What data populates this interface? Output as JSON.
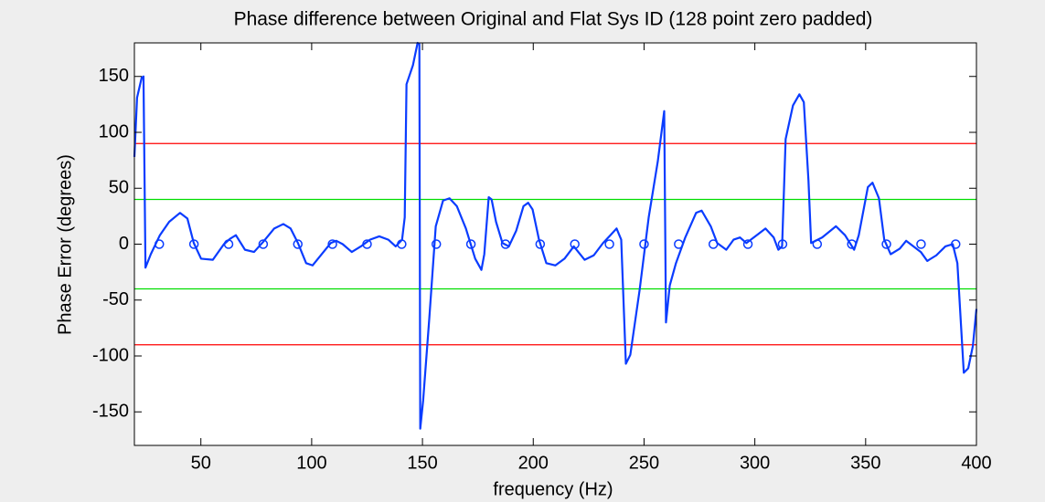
{
  "chart_data": {
    "type": "line",
    "title": "Phase difference between Original and Flat Sys ID (128 point zero padded)",
    "xlabel": "frequency (Hz)",
    "ylabel": "Phase Error (degrees)",
    "xlim": [
      20,
      400
    ],
    "ylim": [
      -180,
      180
    ],
    "xticks": [
      50,
      100,
      150,
      200,
      250,
      300,
      350,
      400
    ],
    "yticks": [
      -150,
      -100,
      -50,
      0,
      50,
      100,
      150
    ],
    "grid": false,
    "series": [
      {
        "color": "#0a3cff",
        "x": [
          20,
          21.2,
          23.3,
          24.1,
          25,
          27.4,
          31.5,
          35.7,
          40.6,
          43.9,
          46.8,
          50.1,
          55.4,
          60.4,
          63.3,
          65.8,
          69.9,
          74,
          78.1,
          83.1,
          87.2,
          90.5,
          93.8,
          97.5,
          100.4,
          104.5,
          108.6,
          111.1,
          114,
          118.1,
          122.2,
          126.3,
          130.5,
          134.6,
          137.9,
          140.8,
          142,
          142.8,
          145.7,
          147.8,
          148.6,
          149,
          150.3,
          153.1,
          156,
          159.3,
          162.2,
          165.5,
          169.6,
          173.8,
          176.6,
          177.9,
          179.9,
          181.2,
          183.2,
          186.1,
          189,
          192.3,
          195.6,
          197.7,
          199.7,
          202.6,
          205.9,
          210,
          214.1,
          218.3,
          223.2,
          227.3,
          231.5,
          234.8,
          237.6,
          239.7,
          241.8,
          243.8,
          248,
          252.1,
          256.2,
          259.1,
          259.9,
          261.6,
          264.4,
          268.6,
          273.5,
          276,
          280.1,
          283,
          287.1,
          290.4,
          293.3,
          296.2,
          301.5,
          304.8,
          308.5,
          310.6,
          312.3,
          313.9,
          317.2,
          320.1,
          322.1,
          324.2,
          325.4,
          330.4,
          336.6,
          340.7,
          344.8,
          346.9,
          351,
          353.1,
          356,
          358.4,
          361.3,
          365.4,
          368.3,
          371.6,
          374.9,
          377.8,
          381.9,
          386,
          389.3,
          391.4,
          394.3,
          396.3,
          398.4,
          400
        ],
        "values": [
          78,
          131,
          149,
          150,
          -21,
          -9,
          8,
          20,
          28,
          23,
          1,
          -13,
          -14,
          0,
          5,
          8,
          -5,
          -7,
          2,
          14,
          18,
          14,
          1,
          -17,
          -19,
          -9,
          1,
          3,
          0,
          -7,
          -2,
          4,
          7,
          4,
          -2,
          4,
          24,
          143,
          160,
          180,
          179,
          -165,
          -140,
          -66,
          16,
          39,
          41,
          34,
          14,
          -13,
          -23,
          -9,
          42,
          40,
          20,
          1,
          -2,
          12,
          34,
          37,
          31,
          4,
          -17,
          -19,
          -13,
          -2,
          -14,
          -10,
          1,
          8,
          14,
          4,
          -107,
          -99,
          -41,
          24,
          74,
          119,
          -70,
          -37,
          -17,
          6,
          28,
          30,
          16,
          1,
          -5,
          4,
          6,
          1,
          9,
          14,
          6,
          -5,
          -2,
          94,
          124,
          134,
          127,
          57,
          1,
          6,
          16,
          8,
          -5,
          8,
          51,
          55,
          41,
          4,
          -9,
          -4,
          3,
          -2,
          -7,
          -15,
          -10,
          -2,
          0,
          -17,
          -115,
          -111,
          -91,
          -58
        ]
      }
    ],
    "markers": {
      "color": "#0a3cff",
      "x": [
        31.25,
        46.875,
        62.5,
        78.125,
        93.75,
        109.375,
        125,
        140.625,
        156.25,
        171.875,
        187.5,
        203.125,
        218.75,
        234.375,
        250,
        265.625,
        281.25,
        296.875,
        312.5,
        328.125,
        343.75,
        359.375,
        375,
        390.625
      ],
      "values": [
        0,
        0,
        0,
        0,
        0,
        0,
        0,
        0,
        0,
        0,
        0,
        0,
        0,
        0,
        0,
        0,
        0,
        0,
        0,
        0,
        0,
        0,
        0,
        0
      ]
    },
    "hlines": [
      {
        "value": 90,
        "color": "#ff0000"
      },
      {
        "value": -90,
        "color": "#ff0000"
      },
      {
        "value": 40,
        "color": "#00dd00"
      },
      {
        "value": -40,
        "color": "#00dd00"
      }
    ]
  }
}
